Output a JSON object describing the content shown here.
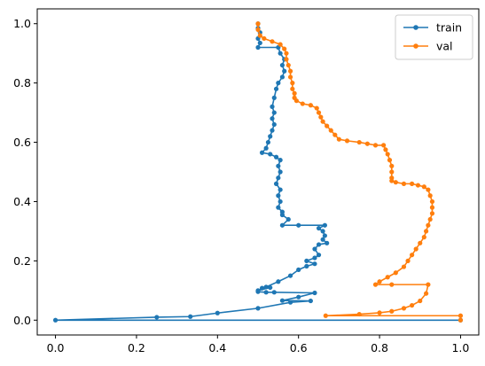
{
  "chart_data": {
    "type": "line",
    "title": "",
    "xlabel": "",
    "ylabel": "",
    "xlim": [
      -0.045,
      1.045
    ],
    "ylim": [
      -0.05,
      1.05
    ],
    "xticks": [
      "0.0",
      "0.2",
      "0.4",
      "0.6",
      "0.8",
      "1.0"
    ],
    "yticks": [
      "0.0",
      "0.2",
      "0.4",
      "0.6",
      "0.8",
      "1.0"
    ],
    "grid": false,
    "legend": "top-right",
    "series": [
      {
        "name": "train",
        "color": "#1f77b4",
        "marker": "circle",
        "points": [
          [
            1.0,
            0.0
          ],
          [
            0.0,
            0.0
          ],
          [
            0.25,
            0.01
          ],
          [
            0.333,
            0.012
          ],
          [
            0.4,
            0.024
          ],
          [
            0.5,
            0.04
          ],
          [
            0.58,
            0.06
          ],
          [
            0.63,
            0.065
          ],
          [
            0.56,
            0.066
          ],
          [
            0.6,
            0.078
          ],
          [
            0.64,
            0.092
          ],
          [
            0.54,
            0.094
          ],
          [
            0.52,
            0.094
          ],
          [
            0.5,
            0.096
          ],
          [
            0.51,
            0.108
          ],
          [
            0.53,
            0.11
          ],
          [
            0.5,
            0.1
          ],
          [
            0.52,
            0.112
          ],
          [
            0.55,
            0.13
          ],
          [
            0.58,
            0.15
          ],
          [
            0.6,
            0.17
          ],
          [
            0.62,
            0.182
          ],
          [
            0.64,
            0.19
          ],
          [
            0.62,
            0.2
          ],
          [
            0.64,
            0.21
          ],
          [
            0.65,
            0.22
          ],
          [
            0.64,
            0.24
          ],
          [
            0.65,
            0.255
          ],
          [
            0.67,
            0.26
          ],
          [
            0.66,
            0.272
          ],
          [
            0.665,
            0.285
          ],
          [
            0.66,
            0.3
          ],
          [
            0.65,
            0.31
          ],
          [
            0.665,
            0.32
          ],
          [
            0.6,
            0.32
          ],
          [
            0.56,
            0.32
          ],
          [
            0.575,
            0.34
          ],
          [
            0.56,
            0.355
          ],
          [
            0.56,
            0.365
          ],
          [
            0.55,
            0.38
          ],
          [
            0.555,
            0.4
          ],
          [
            0.55,
            0.42
          ],
          [
            0.555,
            0.44
          ],
          [
            0.545,
            0.46
          ],
          [
            0.55,
            0.48
          ],
          [
            0.555,
            0.5
          ],
          [
            0.55,
            0.52
          ],
          [
            0.555,
            0.54
          ],
          [
            0.545,
            0.55
          ],
          [
            0.53,
            0.56
          ],
          [
            0.51,
            0.565
          ],
          [
            0.52,
            0.58
          ],
          [
            0.525,
            0.6
          ],
          [
            0.53,
            0.62
          ],
          [
            0.535,
            0.64
          ],
          [
            0.54,
            0.66
          ],
          [
            0.535,
            0.68
          ],
          [
            0.54,
            0.7
          ],
          [
            0.535,
            0.72
          ],
          [
            0.54,
            0.75
          ],
          [
            0.545,
            0.78
          ],
          [
            0.55,
            0.8
          ],
          [
            0.56,
            0.82
          ],
          [
            0.565,
            0.84
          ],
          [
            0.56,
            0.86
          ],
          [
            0.565,
            0.88
          ],
          [
            0.555,
            0.9
          ],
          [
            0.55,
            0.92
          ],
          [
            0.5,
            0.92
          ],
          [
            0.505,
            0.935
          ],
          [
            0.5,
            0.95
          ],
          [
            0.505,
            0.97
          ],
          [
            0.5,
            0.985
          ],
          [
            0.5,
            1.0
          ]
        ]
      },
      {
        "name": "val",
        "color": "#ff7f0e",
        "marker": "circle",
        "points": [
          [
            1.0,
            0.0
          ],
          [
            1.0,
            0.015
          ],
          [
            0.667,
            0.015
          ],
          [
            0.75,
            0.02
          ],
          [
            0.8,
            0.025
          ],
          [
            0.83,
            0.03
          ],
          [
            0.86,
            0.04
          ],
          [
            0.88,
            0.05
          ],
          [
            0.9,
            0.065
          ],
          [
            0.915,
            0.09
          ],
          [
            0.92,
            0.12
          ],
          [
            0.83,
            0.12
          ],
          [
            0.79,
            0.12
          ],
          [
            0.8,
            0.13
          ],
          [
            0.82,
            0.145
          ],
          [
            0.84,
            0.16
          ],
          [
            0.86,
            0.18
          ],
          [
            0.87,
            0.2
          ],
          [
            0.88,
            0.22
          ],
          [
            0.89,
            0.24
          ],
          [
            0.9,
            0.26
          ],
          [
            0.91,
            0.28
          ],
          [
            0.915,
            0.3
          ],
          [
            0.92,
            0.32
          ],
          [
            0.925,
            0.34
          ],
          [
            0.93,
            0.36
          ],
          [
            0.93,
            0.38
          ],
          [
            0.93,
            0.4
          ],
          [
            0.925,
            0.42
          ],
          [
            0.92,
            0.44
          ],
          [
            0.91,
            0.45
          ],
          [
            0.895,
            0.455
          ],
          [
            0.88,
            0.46
          ],
          [
            0.86,
            0.46
          ],
          [
            0.84,
            0.465
          ],
          [
            0.83,
            0.47
          ],
          [
            0.83,
            0.48
          ],
          [
            0.83,
            0.5
          ],
          [
            0.83,
            0.52
          ],
          [
            0.825,
            0.54
          ],
          [
            0.82,
            0.56
          ],
          [
            0.815,
            0.575
          ],
          [
            0.81,
            0.59
          ],
          [
            0.79,
            0.59
          ],
          [
            0.77,
            0.595
          ],
          [
            0.75,
            0.6
          ],
          [
            0.72,
            0.605
          ],
          [
            0.7,
            0.61
          ],
          [
            0.69,
            0.625
          ],
          [
            0.68,
            0.64
          ],
          [
            0.67,
            0.655
          ],
          [
            0.66,
            0.67
          ],
          [
            0.655,
            0.685
          ],
          [
            0.65,
            0.7
          ],
          [
            0.645,
            0.715
          ],
          [
            0.63,
            0.725
          ],
          [
            0.61,
            0.73
          ],
          [
            0.595,
            0.74
          ],
          [
            0.59,
            0.75
          ],
          [
            0.59,
            0.765
          ],
          [
            0.585,
            0.78
          ],
          [
            0.585,
            0.8
          ],
          [
            0.58,
            0.82
          ],
          [
            0.58,
            0.84
          ],
          [
            0.575,
            0.86
          ],
          [
            0.57,
            0.88
          ],
          [
            0.57,
            0.9
          ],
          [
            0.565,
            0.915
          ],
          [
            0.555,
            0.93
          ],
          [
            0.535,
            0.94
          ],
          [
            0.515,
            0.95
          ],
          [
            0.505,
            0.96
          ],
          [
            0.5,
            0.98
          ],
          [
            0.5,
            1.0
          ]
        ]
      }
    ]
  }
}
